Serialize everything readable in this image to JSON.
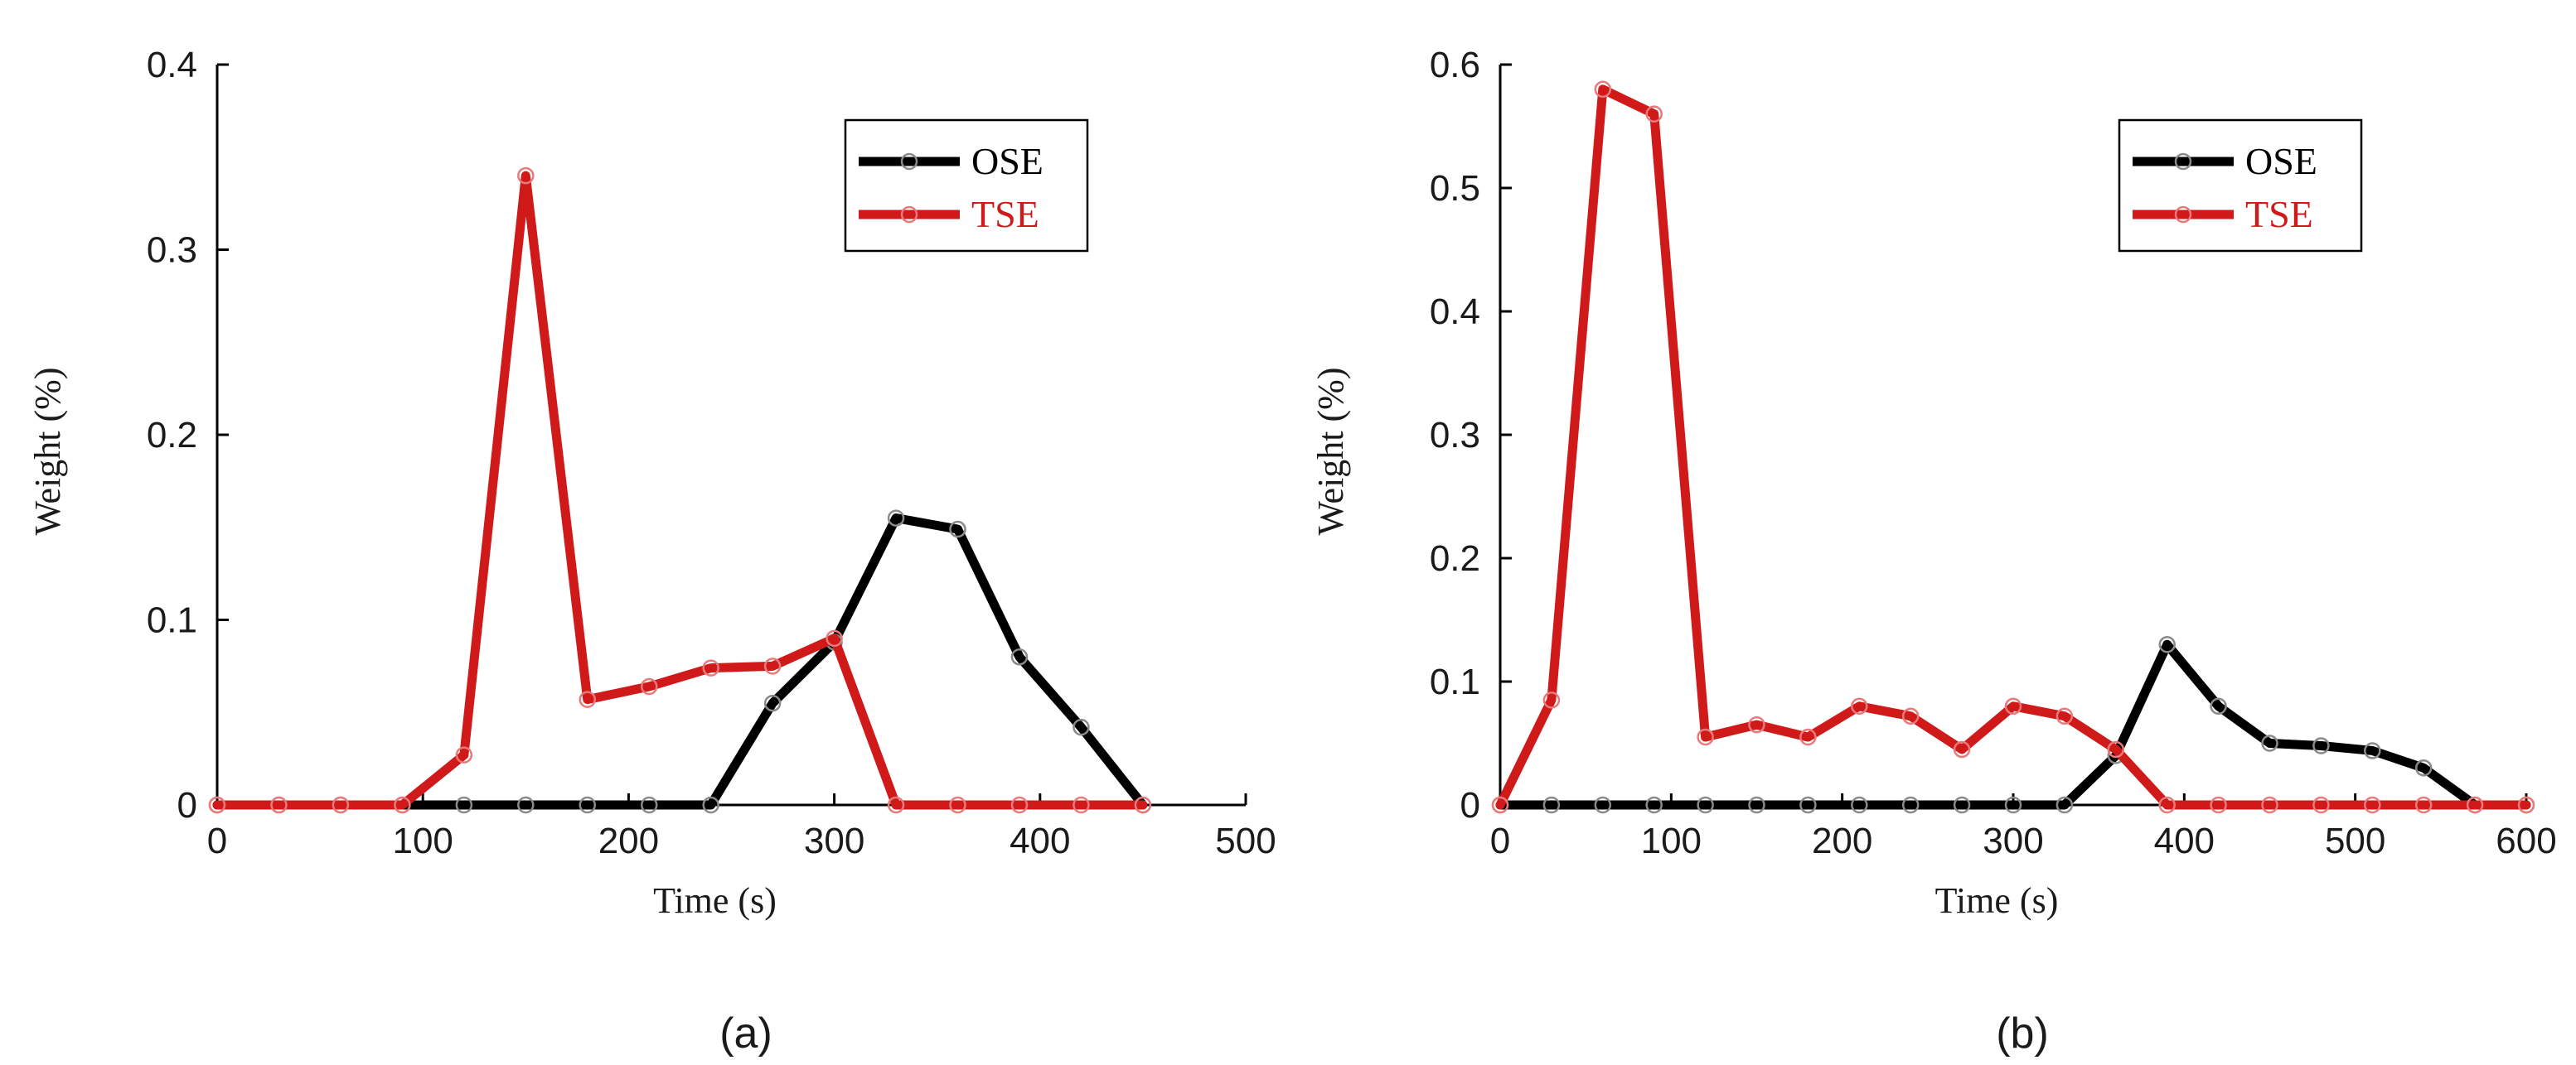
{
  "chart_data": [
    {
      "type": "line",
      "panel_label": "(a)",
      "title": "",
      "xlabel": "Time (s)",
      "ylabel": "Weight (%)",
      "xlim": [
        0,
        500
      ],
      "ylim": [
        0,
        0.4
      ],
      "x_ticks": [
        0,
        100,
        200,
        300,
        400,
        500
      ],
      "y_ticks": [
        0,
        0.1,
        0.2,
        0.3,
        0.4
      ],
      "x_tick_labels": [
        "0",
        "100",
        "200",
        "300",
        "400",
        "500"
      ],
      "y_tick_labels": [
        "0",
        "0.1",
        "0.2",
        "0.3",
        "0.4"
      ],
      "grid": false,
      "legend_position": "top-right",
      "series": [
        {
          "name": "OSE",
          "color": "#000000",
          "x": [
            0,
            30,
            60,
            90,
            120,
            150,
            180,
            210,
            240,
            270,
            300,
            330,
            360,
            390,
            420,
            450
          ],
          "y": [
            0,
            0,
            0,
            0,
            0,
            0,
            0,
            0,
            0,
            0.055,
            0.088,
            0.155,
            0.149,
            0.08,
            0.042,
            0
          ]
        },
        {
          "name": "TSE",
          "color": "#d01a1a",
          "x": [
            0,
            30,
            60,
            90,
            120,
            150,
            180,
            210,
            240,
            270,
            300,
            330,
            360,
            390,
            420,
            450
          ],
          "y": [
            0,
            0,
            0,
            0,
            0.027,
            0.34,
            0.057,
            0.064,
            0.074,
            0.075,
            0.09,
            0,
            0,
            0,
            0,
            0
          ]
        }
      ]
    },
    {
      "type": "line",
      "panel_label": "(b)",
      "title": "",
      "xlabel": "Time (s)",
      "ylabel": "Weight (%)",
      "xlim": [
        0,
        600
      ],
      "ylim": [
        0,
        0.6
      ],
      "x_ticks": [
        0,
        100,
        200,
        300,
        400,
        500,
        600
      ],
      "y_ticks": [
        0,
        0.1,
        0.2,
        0.3,
        0.4,
        0.5,
        0.6
      ],
      "x_tick_labels": [
        "0",
        "100",
        "200",
        "300",
        "400",
        "500",
        "600"
      ],
      "y_tick_labels": [
        "0",
        "0.1",
        "0.2",
        "0.3",
        "0.4",
        "0.5",
        "0.6"
      ],
      "grid": false,
      "legend_position": "top-right",
      "series": [
        {
          "name": "OSE",
          "color": "#000000",
          "x": [
            0,
            30,
            60,
            90,
            120,
            150,
            180,
            210,
            240,
            270,
            300,
            330,
            360,
            390,
            420,
            450,
            480,
            510,
            540,
            570,
            600
          ],
          "y": [
            0,
            0,
            0,
            0,
            0,
            0,
            0,
            0,
            0,
            0,
            0,
            0,
            0.04,
            0.13,
            0.08,
            0.05,
            0.048,
            0.044,
            0.03,
            0,
            0
          ]
        },
        {
          "name": "TSE",
          "color": "#d01a1a",
          "x": [
            0,
            30,
            60,
            90,
            120,
            150,
            180,
            210,
            240,
            270,
            300,
            330,
            360,
            390,
            420,
            450,
            480,
            510,
            540,
            570,
            600
          ],
          "y": [
            0,
            0.085,
            0.58,
            0.56,
            0.055,
            0.065,
            0.055,
            0.08,
            0.072,
            0.045,
            0.08,
            0.072,
            0.045,
            0,
            0,
            0,
            0,
            0,
            0,
            0,
            0
          ]
        }
      ]
    }
  ]
}
